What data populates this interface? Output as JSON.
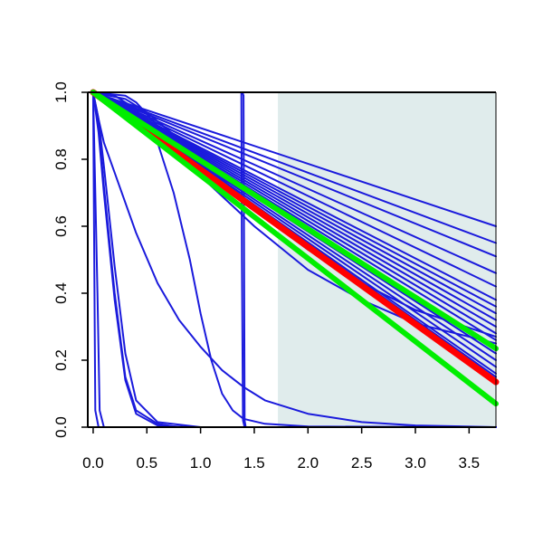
{
  "chart_data": {
    "type": "line",
    "title": "",
    "xlabel": "",
    "ylabel": "",
    "xlim": [
      -0.05,
      3.75
    ],
    "ylim": [
      0.0,
      1.0
    ],
    "x_ticks": [
      "0.0",
      "0.5",
      "1.0",
      "1.5",
      "2.0",
      "2.5",
      "3.0",
      "3.5"
    ],
    "y_ticks": [
      "0.0",
      "0.2",
      "0.4",
      "0.6",
      "0.8",
      "1.0"
    ],
    "shaded_region": {
      "x_from": 1.72,
      "x_to": 3.75,
      "color": "#e0ecec"
    },
    "colors": {
      "blue": "#1a1adc",
      "red": "#ff0000",
      "green": "#00ee00",
      "axis": "#000000"
    },
    "series": [
      {
        "color": "blue",
        "width": 2,
        "points": [
          [
            0,
            1
          ],
          [
            0.02,
            0.05
          ],
          [
            0.05,
            0
          ],
          [
            3.75,
            0
          ]
        ]
      },
      {
        "color": "blue",
        "width": 2,
        "points": [
          [
            0,
            1
          ],
          [
            0.04,
            0.4
          ],
          [
            0.06,
            0.05
          ],
          [
            0.1,
            0
          ],
          [
            3.75,
            0
          ]
        ]
      },
      {
        "color": "blue",
        "width": 2,
        "points": [
          [
            0,
            1
          ],
          [
            0.05,
            0.9
          ],
          [
            0.1,
            0.72
          ],
          [
            0.2,
            0.4
          ],
          [
            0.3,
            0.15
          ],
          [
            0.4,
            0.05
          ],
          [
            0.6,
            0.01
          ],
          [
            0.8,
            0
          ],
          [
            3.75,
            0
          ]
        ]
      },
      {
        "color": "blue",
        "width": 2,
        "points": [
          [
            0,
            1
          ],
          [
            0.05,
            0.88
          ],
          [
            0.1,
            0.7
          ],
          [
            0.2,
            0.38
          ],
          [
            0.3,
            0.14
          ],
          [
            0.4,
            0.04
          ],
          [
            0.6,
            0.005
          ],
          [
            0.9,
            0
          ],
          [
            3.75,
            0
          ]
        ]
      },
      {
        "color": "blue",
        "width": 2,
        "points": [
          [
            0,
            1
          ],
          [
            0.05,
            0.92
          ],
          [
            0.1,
            0.78
          ],
          [
            0.2,
            0.48
          ],
          [
            0.3,
            0.22
          ],
          [
            0.4,
            0.08
          ],
          [
            0.6,
            0.015
          ],
          [
            1.0,
            0
          ],
          [
            3.75,
            0
          ]
        ]
      },
      {
        "color": "blue",
        "width": 2,
        "points": [
          [
            0,
            1
          ],
          [
            0.05,
            0.92
          ],
          [
            0.1,
            0.85
          ],
          [
            0.2,
            0.76
          ],
          [
            0.4,
            0.58
          ],
          [
            0.6,
            0.43
          ],
          [
            0.8,
            0.32
          ],
          [
            1.0,
            0.24
          ],
          [
            1.2,
            0.17
          ],
          [
            1.4,
            0.12
          ],
          [
            1.6,
            0.08
          ],
          [
            2.0,
            0.04
          ],
          [
            2.5,
            0.015
          ],
          [
            3.0,
            0.005
          ],
          [
            3.75,
            0
          ]
        ]
      },
      {
        "color": "blue",
        "width": 2,
        "points": [
          [
            0,
            1
          ],
          [
            0.1,
            1
          ],
          [
            0.2,
            0.99
          ],
          [
            0.4,
            0.95
          ],
          [
            0.6,
            0.85
          ],
          [
            0.75,
            0.7
          ],
          [
            0.9,
            0.5
          ],
          [
            1.0,
            0.34
          ],
          [
            1.1,
            0.2
          ],
          [
            1.2,
            0.1
          ],
          [
            1.3,
            0.05
          ],
          [
            1.4,
            0.025
          ],
          [
            1.6,
            0.01
          ],
          [
            2.0,
            0.002
          ],
          [
            3.75,
            0
          ]
        ]
      },
      {
        "color": "blue",
        "width": 2,
        "points": [
          [
            0,
            1
          ],
          [
            1.39,
            1
          ],
          [
            1.4,
            0.99
          ],
          [
            1.41,
            0.02
          ],
          [
            1.42,
            0
          ],
          [
            3.75,
            0
          ]
        ]
      },
      {
        "color": "blue",
        "width": 2,
        "points": [
          [
            0,
            1
          ],
          [
            1.38,
            1
          ],
          [
            1.385,
            0.5
          ],
          [
            1.395,
            0.02
          ],
          [
            1.41,
            0
          ],
          [
            3.75,
            0
          ]
        ]
      },
      {
        "color": "blue",
        "width": 2,
        "points": [
          [
            0,
            1
          ],
          [
            3.75,
            0.6
          ]
        ]
      },
      {
        "color": "blue",
        "width": 2,
        "points": [
          [
            0,
            1
          ],
          [
            3.75,
            0.55
          ]
        ]
      },
      {
        "color": "blue",
        "width": 2,
        "points": [
          [
            0,
            1
          ],
          [
            3.75,
            0.51
          ]
        ]
      },
      {
        "color": "blue",
        "width": 2,
        "points": [
          [
            0,
            1
          ],
          [
            3.75,
            0.46
          ]
        ]
      },
      {
        "color": "blue",
        "width": 2,
        "points": [
          [
            0,
            1
          ],
          [
            3.75,
            0.42
          ]
        ]
      },
      {
        "color": "blue",
        "width": 2,
        "points": [
          [
            0,
            1
          ],
          [
            3.75,
            0.38
          ]
        ]
      },
      {
        "color": "blue",
        "width": 2,
        "points": [
          [
            0,
            1
          ],
          [
            3.75,
            0.36
          ]
        ]
      },
      {
        "color": "blue",
        "width": 2,
        "points": [
          [
            0,
            1
          ],
          [
            3.75,
            0.34
          ]
        ]
      },
      {
        "color": "blue",
        "width": 2,
        "points": [
          [
            0,
            1
          ],
          [
            3.75,
            0.32
          ]
        ]
      },
      {
        "color": "blue",
        "width": 2,
        "points": [
          [
            0,
            1
          ],
          [
            3.75,
            0.3
          ]
        ]
      },
      {
        "color": "blue",
        "width": 2,
        "points": [
          [
            0,
            1
          ],
          [
            3.75,
            0.28
          ]
        ]
      },
      {
        "color": "blue",
        "width": 2,
        "points": [
          [
            0,
            1
          ],
          [
            3.75,
            0.26
          ]
        ]
      },
      {
        "color": "blue",
        "width": 2,
        "points": [
          [
            0,
            1
          ],
          [
            3.75,
            0.24
          ]
        ]
      },
      {
        "color": "blue",
        "width": 2,
        "points": [
          [
            0,
            1
          ],
          [
            3.75,
            0.22
          ]
        ]
      },
      {
        "color": "blue",
        "width": 2,
        "points": [
          [
            0,
            1
          ],
          [
            3.75,
            0.2
          ]
        ]
      },
      {
        "color": "blue",
        "width": 2,
        "points": [
          [
            0,
            1
          ],
          [
            3.75,
            0.18
          ]
        ]
      },
      {
        "color": "blue",
        "width": 2,
        "points": [
          [
            0,
            1
          ],
          [
            3.75,
            0.16
          ]
        ]
      },
      {
        "color": "blue",
        "width": 2,
        "points": [
          [
            0,
            1
          ],
          [
            3.75,
            0.15
          ]
        ]
      },
      {
        "color": "blue",
        "width": 2,
        "points": [
          [
            0,
            1
          ],
          [
            0.3,
            0.99
          ],
          [
            0.4,
            0.97
          ],
          [
            0.6,
            0.9
          ],
          [
            1.0,
            0.75
          ],
          [
            1.5,
            0.6
          ],
          [
            2.0,
            0.47
          ],
          [
            2.5,
            0.38
          ],
          [
            3.0,
            0.31
          ],
          [
            3.75,
            0.25
          ]
        ]
      },
      {
        "color": "blue",
        "width": 2,
        "points": [
          [
            0,
            1
          ],
          [
            0.3,
            0.98
          ],
          [
            0.5,
            0.94
          ],
          [
            0.8,
            0.86
          ],
          [
            1.2,
            0.74
          ],
          [
            1.6,
            0.63
          ],
          [
            2.0,
            0.53
          ],
          [
            2.5,
            0.43
          ],
          [
            3.0,
            0.35
          ],
          [
            3.75,
            0.27
          ]
        ]
      },
      {
        "color": "red",
        "width": 7,
        "points": [
          [
            0,
            1
          ],
          [
            3.75,
            0.135
          ]
        ]
      },
      {
        "color": "green",
        "width": 6,
        "points": [
          [
            0,
            1
          ],
          [
            3.75,
            0.235
          ]
        ]
      },
      {
        "color": "green",
        "width": 6,
        "points": [
          [
            0,
            1
          ],
          [
            3.75,
            0.07
          ]
        ]
      }
    ]
  }
}
